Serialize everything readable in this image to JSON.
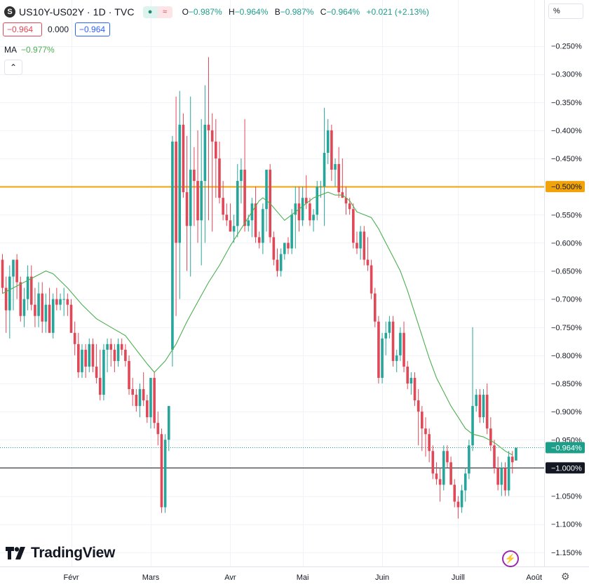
{
  "header": {
    "symbol_icon": "S",
    "title": "US10Y-US02Y · 1D · TVC",
    "badge_icons": [
      "market-open-icon",
      "wave-icon"
    ],
    "ohlc": [
      {
        "label": "O",
        "value": "−0.987%"
      },
      {
        "label": "H",
        "value": "−0.964%"
      },
      {
        "label": "B",
        "value": "−0.987%"
      },
      {
        "label": "C",
        "value": "−0.964%"
      },
      {
        "label": "",
        "value": "+0.021 (+2.13%)"
      }
    ]
  },
  "price_boxes": {
    "sell": "−0.964",
    "spread": "0.000",
    "buy": "−0.964"
  },
  "indicator": {
    "name": "MA",
    "value": "−0.977%"
  },
  "collapse_icon": "chevron-up-icon",
  "scale_mode": "%",
  "brand": "TradingView",
  "colors": {
    "up": "#26a69a",
    "down": "#e14857",
    "ma": "#4caf50",
    "hline_orange": "#f0a30a",
    "hline_black": "#131722",
    "current": "#1d9e89"
  },
  "chart_data": {
    "type": "candlestick",
    "ylim": [
      -1.17,
      -0.24
    ],
    "y_unit": "%",
    "y_ticks": [
      "−0.250%",
      "−0.300%",
      "−0.350%",
      "−0.400%",
      "−0.450%",
      "−0.500%",
      "−0.550%",
      "−0.600%",
      "−0.650%",
      "−0.700%",
      "−0.750%",
      "−0.800%",
      "−0.850%",
      "−0.900%",
      "−0.950%",
      "−1.000%",
      "−1.050%",
      "−1.100%",
      "−1.150%"
    ],
    "y_tick_values": [
      -0.25,
      -0.3,
      -0.35,
      -0.4,
      -0.45,
      -0.5,
      -0.55,
      -0.6,
      -0.65,
      -0.7,
      -0.75,
      -0.8,
      -0.85,
      -0.9,
      -0.95,
      -1.0,
      -1.05,
      -1.1,
      -1.15
    ],
    "x_ticks": [
      "Févr",
      "Mars",
      "Avr",
      "Mai",
      "Juin",
      "Juill",
      "Août"
    ],
    "x_tick_index": [
      19,
      41,
      63,
      83,
      105,
      126,
      147
    ],
    "horizontal_lines": [
      {
        "value": -0.5,
        "label": "−0.500%",
        "color": "orange"
      },
      {
        "value": -1.0,
        "label": "−1.000%",
        "color": "black"
      }
    ],
    "current_price": {
      "value": -0.964,
      "label": "−0.964%"
    },
    "candles": [
      [
        -0.63,
        -0.62,
        -0.69,
        -0.68
      ],
      [
        -0.68,
        -0.66,
        -0.76,
        -0.72
      ],
      [
        -0.72,
        -0.64,
        -0.77,
        -0.66
      ],
      [
        -0.66,
        -0.63,
        -0.72,
        -0.63
      ],
      [
        -0.63,
        -0.62,
        -0.7,
        -0.67
      ],
      [
        -0.67,
        -0.66,
        -0.74,
        -0.73
      ],
      [
        -0.73,
        -0.68,
        -0.75,
        -0.7
      ],
      [
        -0.7,
        -0.64,
        -0.72,
        -0.66
      ],
      [
        -0.66,
        -0.64,
        -0.72,
        -0.71
      ],
      [
        -0.71,
        -0.68,
        -0.75,
        -0.73
      ],
      [
        -0.73,
        -0.67,
        -0.75,
        -0.69
      ],
      [
        -0.69,
        -0.67,
        -0.76,
        -0.74
      ],
      [
        -0.74,
        -0.69,
        -0.76,
        -0.71
      ],
      [
        -0.71,
        -0.68,
        -0.76,
        -0.76
      ],
      [
        -0.76,
        -0.69,
        -0.77,
        -0.7
      ],
      [
        -0.7,
        -0.68,
        -0.72,
        -0.71
      ],
      [
        -0.71,
        -0.69,
        -0.72,
        -0.7
      ],
      [
        -0.7,
        -0.68,
        -0.73,
        -0.7
      ],
      [
        -0.7,
        -0.69,
        -0.73,
        -0.71
      ],
      [
        -0.71,
        -0.7,
        -0.76,
        -0.76
      ],
      [
        -0.76,
        -0.74,
        -0.8,
        -0.78
      ],
      [
        -0.78,
        -0.76,
        -0.84,
        -0.83
      ],
      [
        -0.83,
        -0.78,
        -0.84,
        -0.79
      ],
      [
        -0.79,
        -0.78,
        -0.84,
        -0.82
      ],
      [
        -0.82,
        -0.77,
        -0.83,
        -0.78
      ],
      [
        -0.78,
        -0.77,
        -0.83,
        -0.82
      ],
      [
        -0.82,
        -0.78,
        -0.85,
        -0.84
      ],
      [
        -0.84,
        -0.79,
        -0.88,
        -0.87
      ],
      [
        -0.87,
        -0.78,
        -0.88,
        -0.79
      ],
      [
        -0.79,
        -0.77,
        -0.83,
        -0.78
      ],
      [
        -0.78,
        -0.77,
        -0.82,
        -0.79
      ],
      [
        -0.79,
        -0.78,
        -0.83,
        -0.81
      ],
      [
        -0.81,
        -0.77,
        -0.82,
        -0.78
      ],
      [
        -0.78,
        -0.77,
        -0.8,
        -0.79
      ],
      [
        -0.79,
        -0.78,
        -0.82,
        -0.81
      ],
      [
        -0.81,
        -0.8,
        -0.87,
        -0.86
      ],
      [
        -0.86,
        -0.84,
        -0.89,
        -0.87
      ],
      [
        -0.87,
        -0.86,
        -0.9,
        -0.89
      ],
      [
        -0.89,
        -0.85,
        -0.91,
        -0.86
      ],
      [
        -0.86,
        -0.83,
        -0.89,
        -0.88
      ],
      [
        -0.88,
        -0.87,
        -0.92,
        -0.91
      ],
      [
        -0.91,
        -0.84,
        -0.93,
        -0.84
      ],
      [
        -0.84,
        -0.83,
        -0.93,
        -0.92
      ],
      [
        -0.92,
        -0.9,
        -0.96,
        -0.94
      ],
      [
        -0.94,
        -0.93,
        -1.08,
        -1.07
      ],
      [
        -1.07,
        -0.94,
        -1.08,
        -0.95
      ],
      [
        -0.95,
        -0.89,
        -0.97,
        -0.89
      ],
      [
        -0.79,
        -0.41,
        -0.82,
        -0.42
      ],
      [
        -0.42,
        -0.34,
        -0.73,
        -0.6
      ],
      [
        -0.6,
        -0.33,
        -0.7,
        -0.39
      ],
      [
        -0.39,
        -0.37,
        -0.52,
        -0.51
      ],
      [
        -0.51,
        -0.41,
        -0.65,
        -0.57
      ],
      [
        -0.57,
        -0.34,
        -0.66,
        -0.47
      ],
      [
        -0.47,
        -0.43,
        -0.57,
        -0.49
      ],
      [
        -0.49,
        -0.4,
        -0.6,
        -0.56
      ],
      [
        -0.56,
        -0.38,
        -0.64,
        -0.49
      ],
      [
        -0.49,
        -0.32,
        -0.6,
        -0.39
      ],
      [
        -0.39,
        -0.27,
        -0.56,
        -0.4
      ],
      [
        -0.4,
        -0.37,
        -0.58,
        -0.42
      ],
      [
        -0.42,
        -0.38,
        -0.52,
        -0.45
      ],
      [
        -0.45,
        -0.42,
        -0.53,
        -0.52
      ],
      [
        -0.52,
        -0.49,
        -0.56,
        -0.55
      ],
      [
        -0.55,
        -0.53,
        -0.57,
        -0.56
      ],
      [
        -0.56,
        -0.53,
        -0.58,
        -0.58
      ],
      [
        -0.58,
        -0.55,
        -0.6,
        -0.57
      ],
      [
        -0.57,
        -0.46,
        -0.59,
        -0.49
      ],
      [
        -0.49,
        -0.45,
        -0.53,
        -0.47
      ],
      [
        -0.47,
        -0.38,
        -0.58,
        -0.57
      ],
      [
        -0.57,
        -0.55,
        -0.58,
        -0.56
      ],
      [
        -0.56,
        -0.52,
        -0.59,
        -0.53
      ],
      [
        -0.53,
        -0.5,
        -0.6,
        -0.59
      ],
      [
        -0.59,
        -0.58,
        -0.61,
        -0.6
      ],
      [
        -0.6,
        -0.53,
        -0.62,
        -0.54
      ],
      [
        -0.54,
        -0.47,
        -0.58,
        -0.47
      ],
      [
        -0.47,
        -0.46,
        -0.6,
        -0.59
      ],
      [
        -0.59,
        -0.58,
        -0.64,
        -0.63
      ],
      [
        -0.63,
        -0.61,
        -0.66,
        -0.65
      ],
      [
        -0.65,
        -0.61,
        -0.66,
        -0.62
      ],
      [
        -0.62,
        -0.6,
        -0.63,
        -0.6
      ],
      [
        -0.6,
        -0.59,
        -0.62,
        -0.61
      ],
      [
        -0.61,
        -0.54,
        -0.62,
        -0.55
      ],
      [
        -0.55,
        -0.5,
        -0.61,
        -0.53
      ],
      [
        -0.53,
        -0.5,
        -0.58,
        -0.56
      ],
      [
        -0.56,
        -0.5,
        -0.57,
        -0.52
      ],
      [
        -0.52,
        -0.48,
        -0.54,
        -0.53
      ],
      [
        -0.53,
        -0.52,
        -0.57,
        -0.56
      ],
      [
        -0.56,
        -0.54,
        -0.58,
        -0.55
      ],
      [
        -0.55,
        -0.49,
        -0.56,
        -0.5
      ],
      [
        -0.5,
        -0.49,
        -0.52,
        -0.5
      ],
      [
        -0.5,
        -0.36,
        -0.57,
        -0.44
      ],
      [
        -0.44,
        -0.38,
        -0.46,
        -0.4
      ],
      [
        -0.4,
        -0.39,
        -0.49,
        -0.47
      ],
      [
        -0.47,
        -0.45,
        -0.5,
        -0.46
      ],
      [
        -0.46,
        -0.43,
        -0.52,
        -0.51
      ],
      [
        -0.51,
        -0.45,
        -0.52,
        -0.52
      ],
      [
        -0.52,
        -0.5,
        -0.55,
        -0.53
      ],
      [
        -0.53,
        -0.52,
        -0.55,
        -0.54
      ],
      [
        -0.54,
        -0.53,
        -0.61,
        -0.6
      ],
      [
        -0.6,
        -0.58,
        -0.62,
        -0.61
      ],
      [
        -0.61,
        -0.57,
        -0.63,
        -0.58
      ],
      [
        -0.58,
        -0.57,
        -0.64,
        -0.63
      ],
      [
        -0.63,
        -0.59,
        -0.65,
        -0.64
      ],
      [
        -0.64,
        -0.63,
        -0.7,
        -0.69
      ],
      [
        -0.69,
        -0.68,
        -0.75,
        -0.74
      ],
      [
        -0.74,
        -0.73,
        -0.85,
        -0.84
      ],
      [
        -0.84,
        -0.76,
        -0.85,
        -0.77
      ],
      [
        -0.77,
        -0.74,
        -0.8,
        -0.76
      ],
      [
        -0.76,
        -0.73,
        -0.77,
        -0.74
      ],
      [
        -0.74,
        -0.73,
        -0.82,
        -0.81
      ],
      [
        -0.81,
        -0.79,
        -0.83,
        -0.8
      ],
      [
        -0.8,
        -0.75,
        -0.81,
        -0.76
      ],
      [
        -0.76,
        -0.74,
        -0.83,
        -0.82
      ],
      [
        -0.82,
        -0.81,
        -0.86,
        -0.85
      ],
      [
        -0.85,
        -0.83,
        -0.87,
        -0.84
      ],
      [
        -0.84,
        -0.83,
        -0.89,
        -0.88
      ],
      [
        -0.88,
        -0.86,
        -0.96,
        -0.9
      ],
      [
        -0.9,
        -0.89,
        -0.97,
        -0.93
      ],
      [
        -0.93,
        -0.91,
        -0.98,
        -0.94
      ],
      [
        -0.94,
        -0.93,
        -0.99,
        -0.97
      ],
      [
        -0.97,
        -0.96,
        -1.02,
        -1.01
      ],
      [
        -1.01,
        -0.99,
        -1.03,
        -1.02
      ],
      [
        -1.02,
        -1.0,
        -1.06,
        -1.03
      ],
      [
        -1.03,
        -0.96,
        -1.04,
        -0.97
      ],
      [
        -0.97,
        -0.96,
        -1.0,
        -0.99
      ],
      [
        -0.99,
        -0.98,
        -1.03,
        -1.03
      ],
      [
        -1.03,
        -1.02,
        -1.07,
        -1.06
      ],
      [
        -1.06,
        -1.05,
        -1.09,
        -1.07
      ],
      [
        -1.07,
        -1.03,
        -1.08,
        -1.04
      ],
      [
        -1.04,
        -1.0,
        -1.06,
        -1.01
      ],
      [
        -1.01,
        -0.95,
        -1.02,
        -0.96
      ],
      [
        -0.96,
        -0.75,
        -0.97,
        -0.89
      ],
      [
        -0.89,
        -0.86,
        -0.9,
        -0.87
      ],
      [
        -0.87,
        -0.86,
        -0.92,
        -0.91
      ],
      [
        -0.91,
        -0.86,
        -0.92,
        -0.87
      ],
      [
        -0.87,
        -0.85,
        -0.94,
        -0.93
      ],
      [
        -0.93,
        -0.91,
        -0.97,
        -0.96
      ],
      [
        -0.96,
        -0.95,
        -1.01,
        -1.0
      ],
      [
        -1.0,
        -0.98,
        -1.04,
        -1.03
      ],
      [
        -1.03,
        -0.99,
        -1.05,
        -1.0
      ],
      [
        -1.0,
        -0.99,
        -1.05,
        -1.04
      ],
      [
        -1.04,
        -0.97,
        -1.05,
        -0.98
      ],
      [
        -0.98,
        -0.97,
        -1.01,
        -0.99
      ],
      [
        -0.987,
        -0.964,
        -0.987,
        -0.964
      ]
    ],
    "ma_values": [
      [
        0,
        -0.69
      ],
      [
        6,
        -0.67
      ],
      [
        12,
        -0.65
      ],
      [
        14,
        -0.655
      ],
      [
        18,
        -0.68
      ],
      [
        22,
        -0.71
      ],
      [
        26,
        -0.735
      ],
      [
        30,
        -0.75
      ],
      [
        34,
        -0.765
      ],
      [
        37,
        -0.79
      ],
      [
        40,
        -0.815
      ],
      [
        42,
        -0.83
      ],
      [
        45,
        -0.81
      ],
      [
        48,
        -0.78
      ],
      [
        51,
        -0.74
      ],
      [
        54,
        -0.705
      ],
      [
        57,
        -0.67
      ],
      [
        60,
        -0.64
      ],
      [
        63,
        -0.605
      ],
      [
        66,
        -0.575
      ],
      [
        69,
        -0.545
      ],
      [
        71,
        -0.525
      ],
      [
        72,
        -0.52
      ],
      [
        74,
        -0.53
      ],
      [
        76,
        -0.545
      ],
      [
        78,
        -0.56
      ],
      [
        80,
        -0.55
      ],
      [
        82,
        -0.54
      ],
      [
        84,
        -0.53
      ],
      [
        86,
        -0.52
      ],
      [
        88,
        -0.515
      ],
      [
        90,
        -0.51
      ],
      [
        92,
        -0.515
      ],
      [
        94,
        -0.515
      ],
      [
        96,
        -0.525
      ],
      [
        98,
        -0.545
      ],
      [
        100,
        -0.55
      ],
      [
        102,
        -0.555
      ],
      [
        104,
        -0.575
      ],
      [
        106,
        -0.6
      ],
      [
        108,
        -0.625
      ],
      [
        110,
        -0.65
      ],
      [
        112,
        -0.685
      ],
      [
        114,
        -0.725
      ],
      [
        116,
        -0.765
      ],
      [
        118,
        -0.805
      ],
      [
        120,
        -0.84
      ],
      [
        122,
        -0.865
      ],
      [
        124,
        -0.89
      ],
      [
        126,
        -0.91
      ],
      [
        128,
        -0.93
      ],
      [
        130,
        -0.94
      ],
      [
        133,
        -0.945
      ],
      [
        136,
        -0.955
      ],
      [
        139,
        -0.97
      ],
      [
        141,
        -0.977
      ]
    ]
  }
}
